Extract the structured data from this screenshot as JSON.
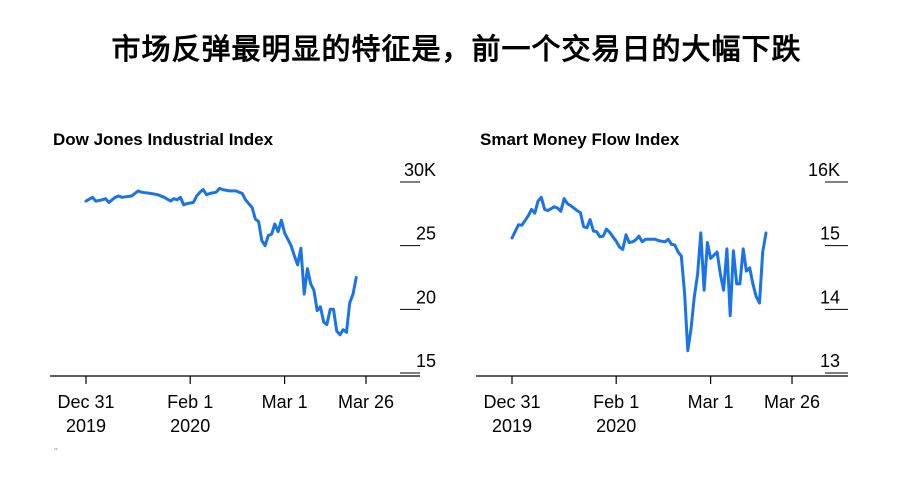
{
  "headline": "市场反弹最明显的特征是，前一个交易日的大幅下跌",
  "footnote": "''",
  "colors": {
    "line": "#1a73e8",
    "axis": "#000000"
  },
  "chart_data": [
    {
      "type": "line",
      "title": "Dow Jones Industrial Index",
      "y_ticks": [
        {
          "value": 30,
          "label": "30K"
        },
        {
          "value": 25,
          "label": "25"
        },
        {
          "value": 20,
          "label": "20"
        },
        {
          "value": 15,
          "label": "15"
        }
      ],
      "ylim": [
        15,
        30
      ],
      "x_ticks": [
        {
          "day": 0,
          "line1": "Dec 31",
          "line2": "2019"
        },
        {
          "day": 32,
          "line1": "Feb 1",
          "line2": "2020"
        },
        {
          "day": 61,
          "line1": "Mar 1",
          "line2": ""
        },
        {
          "day": 86,
          "line1": "Mar 26",
          "line2": ""
        }
      ],
      "series": [
        {
          "values": [
            [
              0,
              28.5
            ],
            [
              2,
              28.8
            ],
            [
              3,
              28.5
            ],
            [
              5,
              28.6
            ],
            [
              6,
              28.7
            ],
            [
              7,
              28.4
            ],
            [
              9,
              28.8
            ],
            [
              10,
              28.9
            ],
            [
              11,
              28.8
            ],
            [
              14,
              28.9
            ],
            [
              16,
              29.3
            ],
            [
              17,
              29.2
            ],
            [
              20,
              29.1
            ],
            [
              22,
              29.0
            ],
            [
              24,
              28.8
            ],
            [
              26,
              28.5
            ],
            [
              27,
              28.7
            ],
            [
              28,
              28.6
            ],
            [
              29,
              28.8
            ],
            [
              30,
              28.2
            ],
            [
              31,
              28.3
            ],
            [
              33,
              28.4
            ],
            [
              34,
              28.9
            ],
            [
              35,
              29.2
            ],
            [
              36,
              29.4
            ],
            [
              37,
              29.0
            ],
            [
              38,
              29.1
            ],
            [
              40,
              29.2
            ],
            [
              41,
              29.5
            ],
            [
              42,
              29.4
            ],
            [
              44,
              29.3
            ],
            [
              46,
              29.3
            ],
            [
              48,
              29.1
            ],
            [
              49,
              28.6
            ],
            [
              51,
              28.0
            ],
            [
              52,
              27.1
            ],
            [
              53,
              26.9
            ],
            [
              54,
              25.4
            ],
            [
              55,
              25.0
            ],
            [
              56,
              25.8
            ],
            [
              57,
              25.9
            ],
            [
              58,
              26.7
            ],
            [
              59,
              26.1
            ],
            [
              60,
              27.0
            ],
            [
              61,
              26.0
            ],
            [
              62,
              25.5
            ],
            [
              63,
              25.0
            ],
            [
              64,
              24.2
            ],
            [
              65,
              23.5
            ],
            [
              66,
              24.8
            ],
            [
              67,
              21.2
            ],
            [
              68,
              23.2
            ],
            [
              69,
              22.0
            ],
            [
              70,
              21.5
            ],
            [
              71,
              19.9
            ],
            [
              72,
              20.2
            ],
            [
              73,
              19.0
            ],
            [
              74,
              18.8
            ],
            [
              75,
              20.0
            ],
            [
              76,
              20.0
            ],
            [
              77,
              18.3
            ],
            [
              78,
              18.0
            ],
            [
              79,
              18.4
            ],
            [
              80,
              18.2
            ],
            [
              81,
              20.5
            ],
            [
              82,
              21.2
            ],
            [
              83,
              22.5
            ]
          ]
        }
      ]
    },
    {
      "type": "line",
      "title": "Smart Money Flow Index",
      "y_ticks": [
        {
          "value": 16,
          "label": "16K"
        },
        {
          "value": 15,
          "label": "15"
        },
        {
          "value": 14,
          "label": "14"
        },
        {
          "value": 13,
          "label": "13"
        }
      ],
      "ylim": [
        13,
        16
      ],
      "x_ticks": [
        {
          "day": 0,
          "line1": "Dec 31",
          "line2": "2019"
        },
        {
          "day": 32,
          "line1": "Feb 1",
          "line2": "2020"
        },
        {
          "day": 61,
          "line1": "Mar 1",
          "line2": ""
        },
        {
          "day": 86,
          "line1": "Mar 26",
          "line2": ""
        }
      ],
      "series": [
        {
          "values": [
            [
              0,
              15.12
            ],
            [
              2,
              15.33
            ],
            [
              3,
              15.32
            ],
            [
              5,
              15.47
            ],
            [
              6,
              15.57
            ],
            [
              7,
              15.51
            ],
            [
              8,
              15.7
            ],
            [
              9,
              15.76
            ],
            [
              10,
              15.57
            ],
            [
              11,
              15.55
            ],
            [
              13,
              15.61
            ],
            [
              14,
              15.59
            ],
            [
              15,
              15.54
            ],
            [
              16,
              15.74
            ],
            [
              17,
              15.66
            ],
            [
              18,
              15.63
            ],
            [
              20,
              15.55
            ],
            [
              21,
              15.52
            ],
            [
              22,
              15.3
            ],
            [
              23,
              15.28
            ],
            [
              24,
              15.41
            ],
            [
              25,
              15.23
            ],
            [
              26,
              15.22
            ],
            [
              27,
              15.14
            ],
            [
              28,
              15.15
            ],
            [
              29,
              15.26
            ],
            [
              30,
              15.21
            ],
            [
              31,
              15.14
            ],
            [
              32,
              15.07
            ],
            [
              33,
              14.98
            ],
            [
              34,
              14.94
            ],
            [
              35,
              15.17
            ],
            [
              36,
              15.05
            ],
            [
              37,
              15.06
            ],
            [
              38,
              15.09
            ],
            [
              39,
              15.15
            ],
            [
              40,
              15.06
            ],
            [
              41,
              15.1
            ],
            [
              44,
              15.1
            ],
            [
              45,
              15.08
            ],
            [
              47,
              15.06
            ],
            [
              48,
              15.1
            ],
            [
              49,
              15.02
            ],
            [
              50,
              15.01
            ],
            [
              51,
              14.9
            ],
            [
              52,
              14.84
            ],
            [
              53,
              14.25
            ],
            [
              54,
              13.35
            ],
            [
              55,
              13.7
            ],
            [
              56,
              14.2
            ],
            [
              57,
              14.55
            ],
            [
              58,
              15.2
            ],
            [
              59,
              14.3
            ],
            [
              60,
              15.05
            ],
            [
              61,
              14.8
            ],
            [
              62,
              14.85
            ],
            [
              63,
              14.9
            ],
            [
              64,
              14.55
            ],
            [
              65,
              14.3
            ],
            [
              66,
              14.95
            ],
            [
              67,
              13.9
            ],
            [
              68,
              14.92
            ],
            [
              69,
              14.4
            ],
            [
              70,
              14.4
            ],
            [
              71,
              14.95
            ],
            [
              72,
              14.6
            ],
            [
              73,
              14.65
            ],
            [
              74,
              14.4
            ],
            [
              75,
              14.2
            ],
            [
              76,
              14.1
            ],
            [
              77,
              14.9
            ],
            [
              78,
              15.2
            ]
          ]
        }
      ]
    }
  ]
}
